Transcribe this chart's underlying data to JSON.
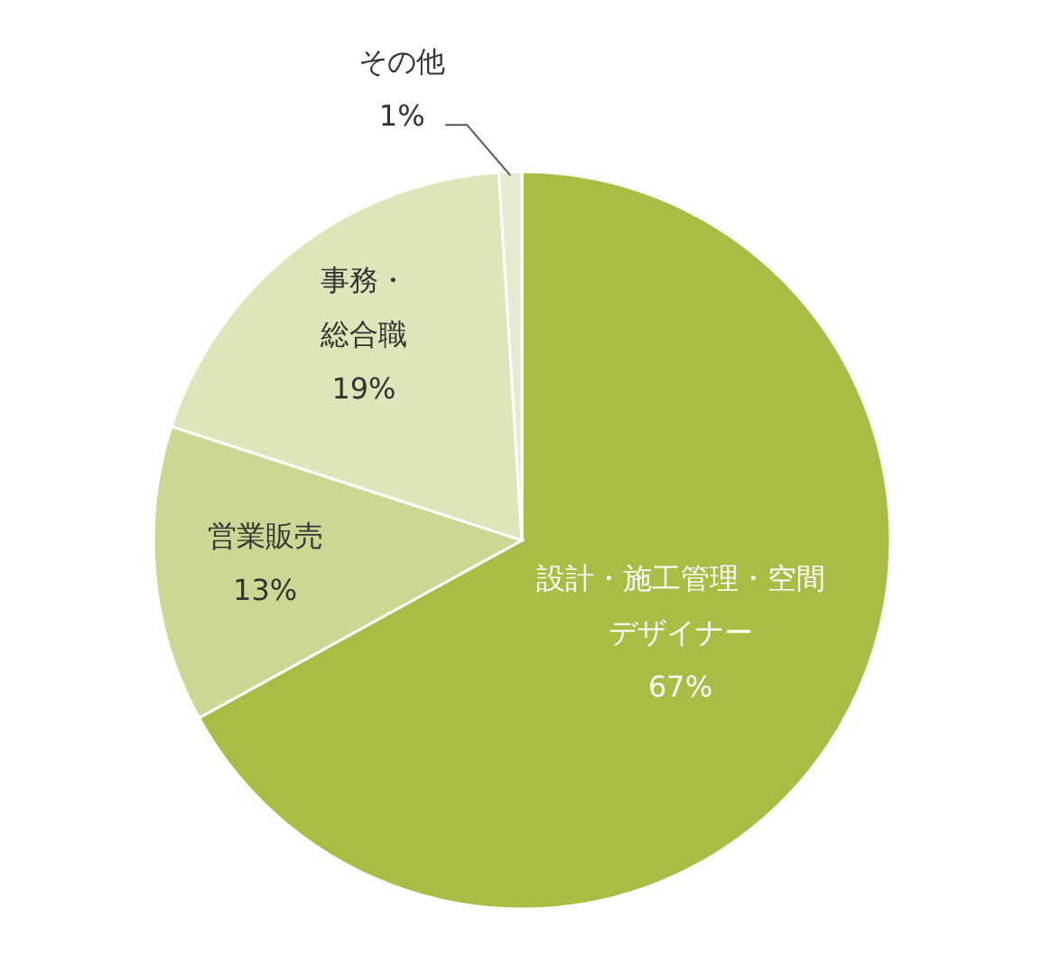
{
  "chart_data": {
    "type": "pie",
    "categories": [
      "設計・施工管理・空間デザイナー",
      "営業販売",
      "事務・総合職",
      "その他"
    ],
    "values": [
      67,
      13,
      19,
      1
    ],
    "value_labels": [
      "67%",
      "13%",
      "19%",
      "1%"
    ],
    "colors": [
      "#a9bd45",
      "#cdd794",
      "#dfe4b9",
      "#e6ead0"
    ]
  }
}
